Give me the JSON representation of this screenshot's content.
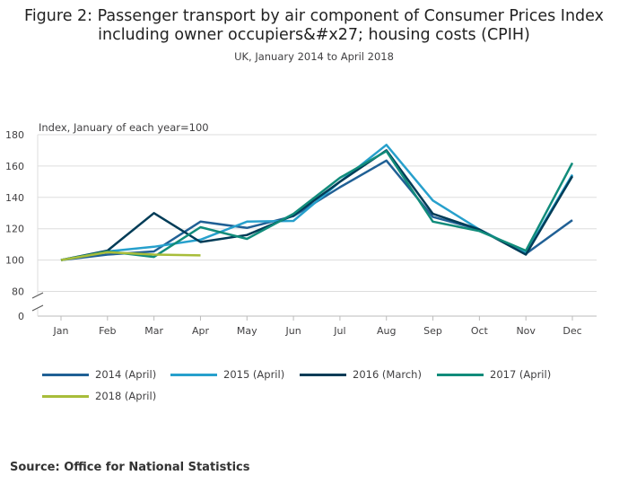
{
  "chart_data": {
    "type": "line",
    "title": "Figure 2: Passenger transport by air component of Consumer Prices Index including owner occupiers&#x27; housing costs (CPIH)",
    "subtitle": "UK, January 2014 to April 2018",
    "ylabel": "Index, January of each year=100",
    "xlabel": "",
    "categories": [
      "Jan",
      "Feb",
      "Mar",
      "Apr",
      "May",
      "Jun",
      "Jul",
      "Aug",
      "Sep",
      "Oct",
      "Nov",
      "Dec"
    ],
    "ylim": [
      80,
      180
    ],
    "yticks": [
      80,
      100,
      120,
      140,
      160,
      180
    ],
    "axis_zero_label": "0",
    "grid": true,
    "series": [
      {
        "name": "2014 (April)",
        "color": "#206095",
        "values": [
          100,
          103.5,
          105.5,
          124.5,
          120.5,
          128,
          146.5,
          163.5,
          127.5,
          119.5,
          104,
          125.5
        ]
      },
      {
        "name": "2015 (April)",
        "color": "#27A0CC",
        "values": [
          100,
          105.5,
          108.5,
          113,
          124.5,
          125,
          150,
          173.5,
          138,
          119.5,
          104.5,
          154.5
        ]
      },
      {
        "name": "2016 (March)",
        "color": "#003C57",
        "values": [
          100,
          106,
          130,
          111.5,
          116,
          128.5,
          150,
          170,
          129.5,
          119.5,
          103.5,
          153.5
        ]
      },
      {
        "name": "2017 (April)",
        "color": "#118C7B",
        "values": [
          100,
          105.5,
          102,
          121,
          113.5,
          129.5,
          152.5,
          169.5,
          124.5,
          118.5,
          106,
          162
        ]
      },
      {
        "name": "2018 (April)",
        "color": "#A8BD3A",
        "values": [
          100,
          105,
          103.5,
          103,
          null,
          null,
          null,
          null,
          null,
          null,
          null,
          null
        ]
      }
    ]
  },
  "source": "Source: Office for National Statistics"
}
